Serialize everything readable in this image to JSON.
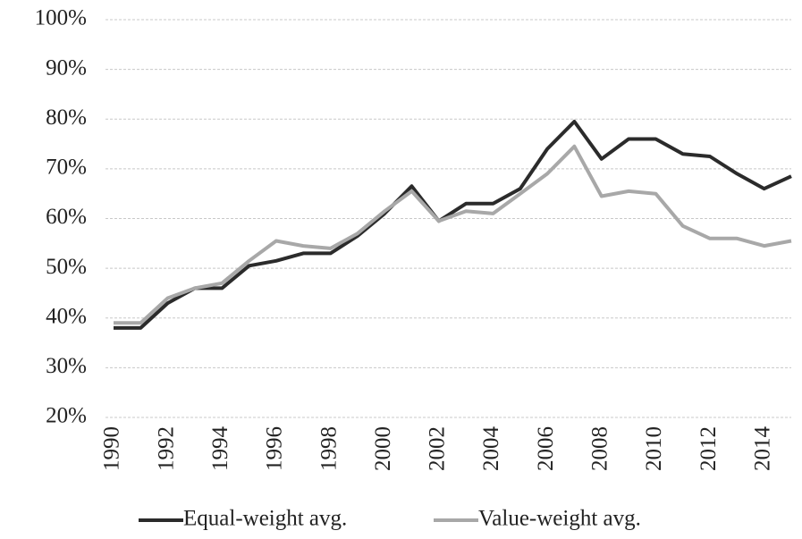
{
  "chart_data": {
    "type": "line",
    "x": [
      1990,
      1991,
      1992,
      1993,
      1994,
      1995,
      1996,
      1997,
      1998,
      1999,
      2000,
      2001,
      2002,
      2003,
      2004,
      2005,
      2006,
      2007,
      2008,
      2009,
      2010,
      2011,
      2012,
      2013,
      2014,
      2015
    ],
    "series": [
      {
        "name": "Equal-weight avg.",
        "color": "#2b2b2b",
        "values": [
          38,
          38,
          43,
          46,
          46,
          50.5,
          51.5,
          53,
          53,
          56.5,
          61,
          66.5,
          59.5,
          63,
          63,
          66,
          74,
          79.5,
          72,
          76,
          76,
          73,
          72.5,
          69,
          66,
          68.5
        ]
      },
      {
        "name": "Value-weight avg.",
        "color": "#a8a8a8",
        "values": [
          39,
          39,
          44,
          46,
          47,
          51.5,
          55.5,
          54.5,
          54,
          57,
          61.5,
          65.5,
          59.5,
          61.5,
          61,
          65,
          69,
          74.5,
          64.5,
          65.5,
          65,
          58.5,
          56,
          56,
          54.5,
          55.5
        ]
      }
    ],
    "xlim": [
      1990,
      2015
    ],
    "xticks": [
      1990,
      1992,
      1994,
      1996,
      1998,
      2000,
      2002,
      2004,
      2006,
      2008,
      2010,
      2012,
      2014
    ],
    "ylim": [
      20,
      100
    ],
    "yticks": [
      {
        "value": 20,
        "label": "20%"
      },
      {
        "value": 30,
        "label": "30%"
      },
      {
        "value": 40,
        "label": "40%"
      },
      {
        "value": 50,
        "label": "50%"
      },
      {
        "value": 60,
        "label": "60%"
      },
      {
        "value": 70,
        "label": "70%"
      },
      {
        "value": 80,
        "label": "80%"
      },
      {
        "value": 90,
        "label": "90%"
      },
      {
        "value": 100,
        "label": "100%"
      }
    ],
    "grid": true,
    "legend": "bottom"
  }
}
